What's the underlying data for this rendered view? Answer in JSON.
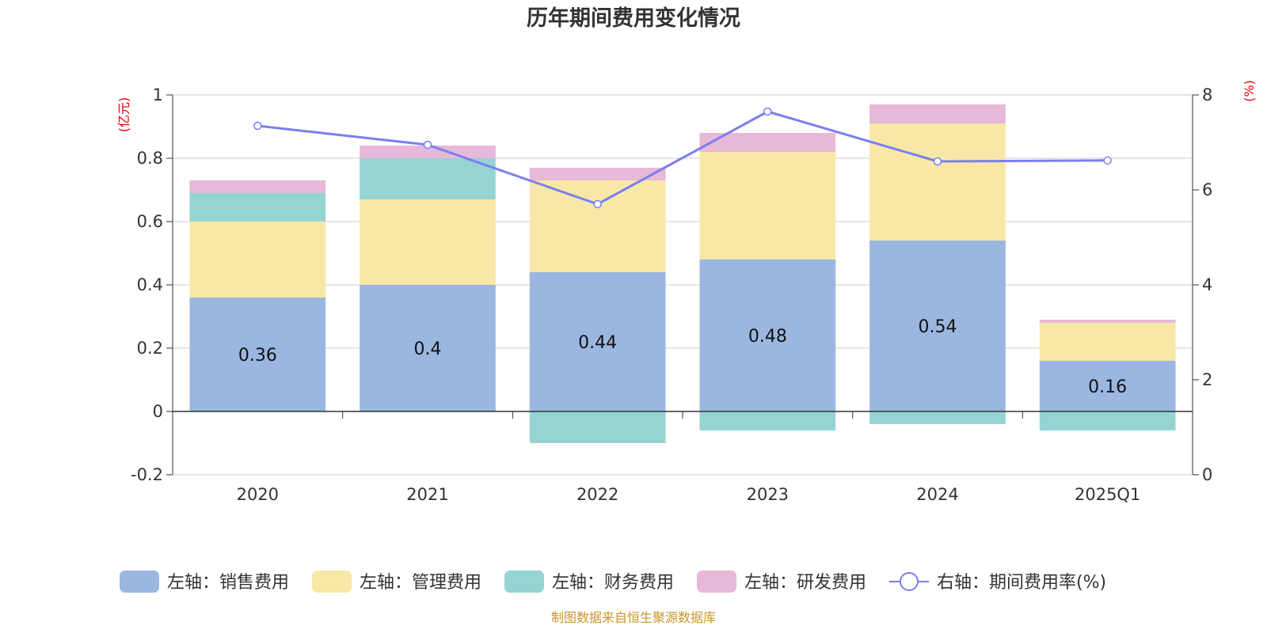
{
  "chart_data": {
    "type": "bar",
    "title": "历年期间费用变化情况",
    "categories": [
      "2020",
      "2021",
      "2022",
      "2023",
      "2024",
      "2025Q1"
    ],
    "left_axis": {
      "unit": "(亿元)",
      "ylim": [
        -0.2,
        1
      ],
      "ticks": [
        -0.2,
        0,
        0.2,
        0.4,
        0.6,
        0.8,
        1
      ],
      "tick_labels": [
        "-0.2",
        "0",
        "0.2",
        "0.4",
        "0.6",
        "0.8",
        "1"
      ]
    },
    "right_axis": {
      "unit": "(%)",
      "ylim": [
        0,
        8
      ],
      "ticks": [
        0,
        2,
        4,
        6,
        8
      ],
      "tick_labels": [
        "0",
        "2",
        "4",
        "6",
        "8"
      ]
    },
    "stacked_series": [
      {
        "name": "左轴：销售费用",
        "color": "#9bb7e0",
        "values": [
          0.36,
          0.4,
          0.44,
          0.48,
          0.54,
          0.16
        ],
        "labels": [
          "0.36",
          "0.4",
          "0.44",
          "0.48",
          "0.54",
          "0.16"
        ]
      },
      {
        "name": "左轴：管理费用",
        "color": "#f8e8a8",
        "values": [
          0.24,
          0.27,
          0.29,
          0.34,
          0.37,
          0.12
        ]
      },
      {
        "name": "左轴：财务费用",
        "color": "#96d4d4",
        "values": [
          0.09,
          0.13,
          -0.1,
          -0.06,
          -0.04,
          -0.06
        ]
      },
      {
        "name": "左轴：研发费用",
        "color": "#e8b8d8",
        "values": [
          0.04,
          0.04,
          0.04,
          0.06,
          0.06,
          0.01
        ]
      }
    ],
    "line_series": {
      "name": "右轴：期间费用率(%)",
      "color": "#7b7ff0",
      "values": [
        7.35,
        6.95,
        5.7,
        7.65,
        6.6,
        6.62
      ]
    },
    "source": "制图数据来自恒生聚源数据库"
  }
}
